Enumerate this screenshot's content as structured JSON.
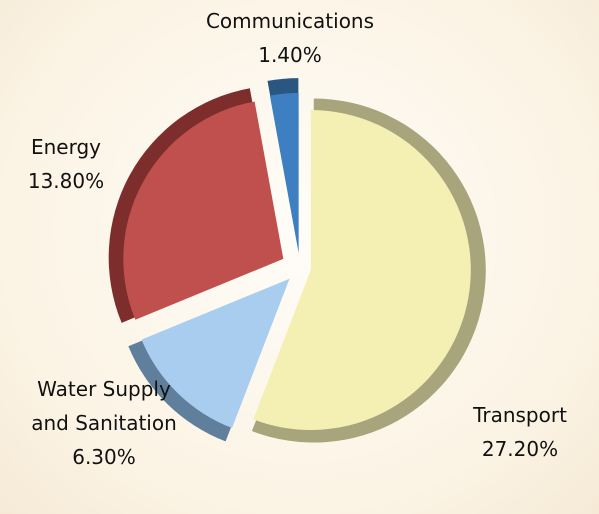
{
  "chart_data": {
    "type": "pie",
    "categories": [
      "Transport",
      "Water Supply and Sanitation",
      "Energy",
      "Communications"
    ],
    "values": [
      27.2,
      6.3,
      13.8,
      1.4
    ],
    "value_labels": [
      "27.20%",
      "6.30%",
      "13.80%",
      "1.40%"
    ],
    "colors": [
      "#f4f0b4",
      "#a9cdef",
      "#c0504d",
      "#3e7fc2"
    ],
    "edge_colors": [
      "#a8a47c",
      "#5f7f9c",
      "#7d2e2c",
      "#2a5682"
    ]
  }
}
